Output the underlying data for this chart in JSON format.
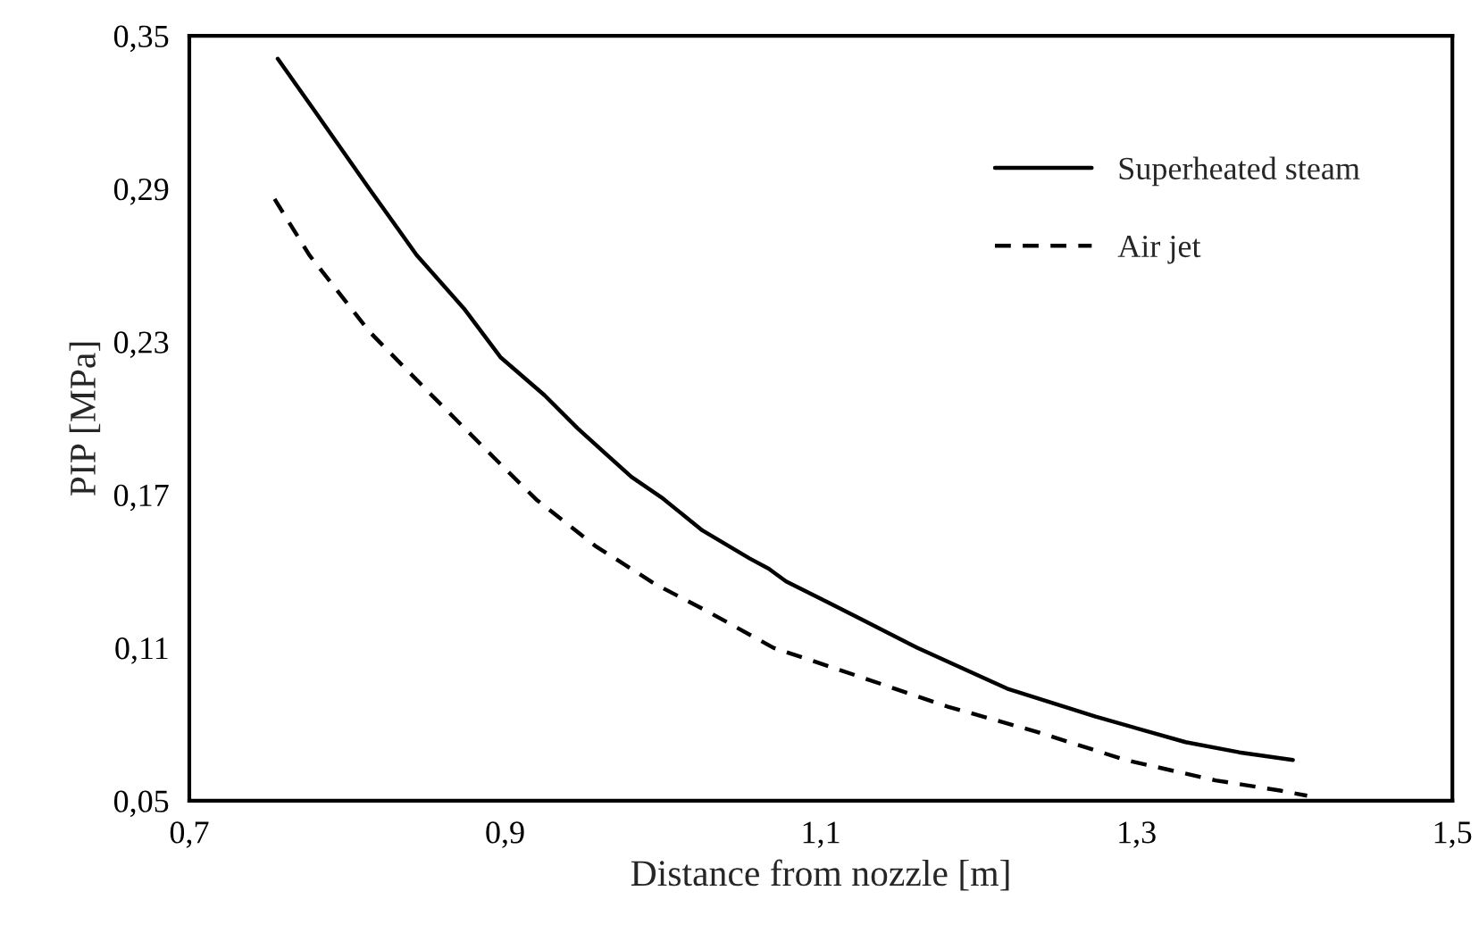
{
  "chart_data": {
    "type": "line",
    "xlabel": "Distance from nozzle [m]",
    "ylabel": "PIP [MPa]",
    "xlim": [
      0.7,
      1.5
    ],
    "xticks": [
      {
        "value": 0.7,
        "label": "0,7"
      },
      {
        "value": 0.9,
        "label": "0,9"
      },
      {
        "value": 1.1,
        "label": "1,1"
      },
      {
        "value": 1.3,
        "label": "1,3"
      },
      {
        "value": 1.5,
        "label": "1,5"
      }
    ],
    "ylim": [
      0.05,
      0.35
    ],
    "yticks": [
      {
        "value": 0.05,
        "label": "0,05"
      },
      {
        "value": 0.11,
        "label": "0,11"
      },
      {
        "value": 0.17,
        "label": "0,17"
      },
      {
        "value": 0.23,
        "label": "0,23"
      },
      {
        "value": 0.29,
        "label": "0,29"
      },
      {
        "value": 0.35,
        "label": "0,35"
      }
    ],
    "grid": false,
    "legend": "top right",
    "marker": "none",
    "series": [
      {
        "name": "Superheated steam",
        "color": "#000000",
        "line_style": "solid",
        "x": [
          0.756,
          0.78,
          0.814,
          0.844,
          0.874,
          0.897,
          0.925,
          0.946,
          0.98,
          0.999,
          1.025,
          1.055,
          1.067,
          1.078,
          1.104,
          1.123,
          1.161,
          1.218,
          1.274,
          1.331,
          1.365,
          1.399
        ],
        "values": [
          0.341,
          0.32,
          0.29,
          0.264,
          0.243,
          0.224,
          0.209,
          0.196,
          0.177,
          0.169,
          0.156,
          0.145,
          0.141,
          0.136,
          0.128,
          0.122,
          0.11,
          0.094,
          0.083,
          0.073,
          0.069,
          0.066
        ]
      },
      {
        "name": "Air jet",
        "color": "#000000",
        "line_style": "dashed",
        "x": [
          0.754,
          0.776,
          0.814,
          0.852,
          0.889,
          0.92,
          0.957,
          0.995,
          1.029,
          1.07,
          1.123,
          1.18,
          1.237,
          1.293,
          1.35,
          1.391,
          1.408
        ],
        "values": [
          0.286,
          0.264,
          0.234,
          0.21,
          0.187,
          0.168,
          0.15,
          0.135,
          0.124,
          0.11,
          0.099,
          0.087,
          0.077,
          0.066,
          0.058,
          0.054,
          0.052
        ]
      }
    ]
  }
}
